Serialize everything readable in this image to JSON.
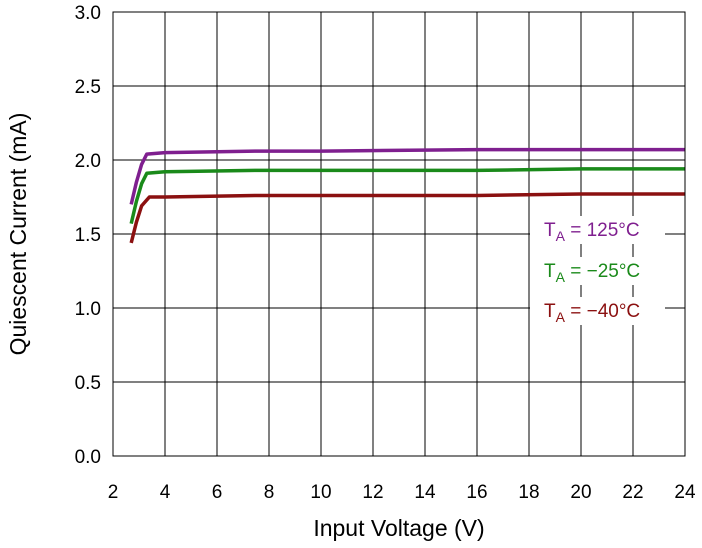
{
  "chart_data": {
    "type": "line",
    "title": "",
    "xlabel": "Input Voltage (V)",
    "ylabel": "Quiescent Current (mA)",
    "xlim": [
      2,
      24
    ],
    "ylim": [
      0,
      3.0
    ],
    "xticks": [
      2,
      4,
      6,
      8,
      10,
      12,
      14,
      16,
      18,
      20,
      22,
      24
    ],
    "yticks": [
      0.0,
      0.5,
      1.0,
      1.5,
      2.0,
      2.5,
      3.0
    ],
    "xtick_labels": [
      "2",
      "4",
      "6",
      "8",
      "10",
      "12",
      "14",
      "16",
      "18",
      "20",
      "22",
      "24"
    ],
    "ytick_labels": [
      "0.0",
      "0.5",
      "1.0",
      "1.5",
      "2.0",
      "2.5",
      "3.0"
    ],
    "grid": true,
    "legend_position": "right",
    "series": [
      {
        "name": "T_A = 125°C",
        "label_main": "T",
        "label_sub": "A",
        "label_rest": " = 125°C",
        "color": "#7f1f8f",
        "x": [
          2.7,
          2.9,
          3.1,
          3.3,
          4.0,
          7.5,
          10,
          16,
          20,
          24
        ],
        "y": [
          1.7,
          1.85,
          1.97,
          2.04,
          2.05,
          2.06,
          2.06,
          2.07,
          2.07,
          2.07
        ]
      },
      {
        "name": "T_A = −25°C",
        "label_main": "T",
        "label_sub": "A",
        "label_rest": " = −25°C",
        "color": "#1a8a1a",
        "x": [
          2.7,
          2.9,
          3.1,
          3.3,
          4.0,
          7.5,
          10,
          16,
          20,
          24
        ],
        "y": [
          1.57,
          1.72,
          1.84,
          1.91,
          1.92,
          1.93,
          1.93,
          1.93,
          1.94,
          1.94
        ]
      },
      {
        "name": "T_A = −40°C",
        "label_main": "T",
        "label_sub": "A",
        "label_rest": " = −40°C",
        "color": "#8b1010",
        "x": [
          2.7,
          2.9,
          3.1,
          3.4,
          4.0,
          7.5,
          10,
          16,
          20,
          24
        ],
        "y": [
          1.44,
          1.58,
          1.69,
          1.75,
          1.75,
          1.76,
          1.76,
          1.76,
          1.77,
          1.77
        ]
      }
    ]
  }
}
